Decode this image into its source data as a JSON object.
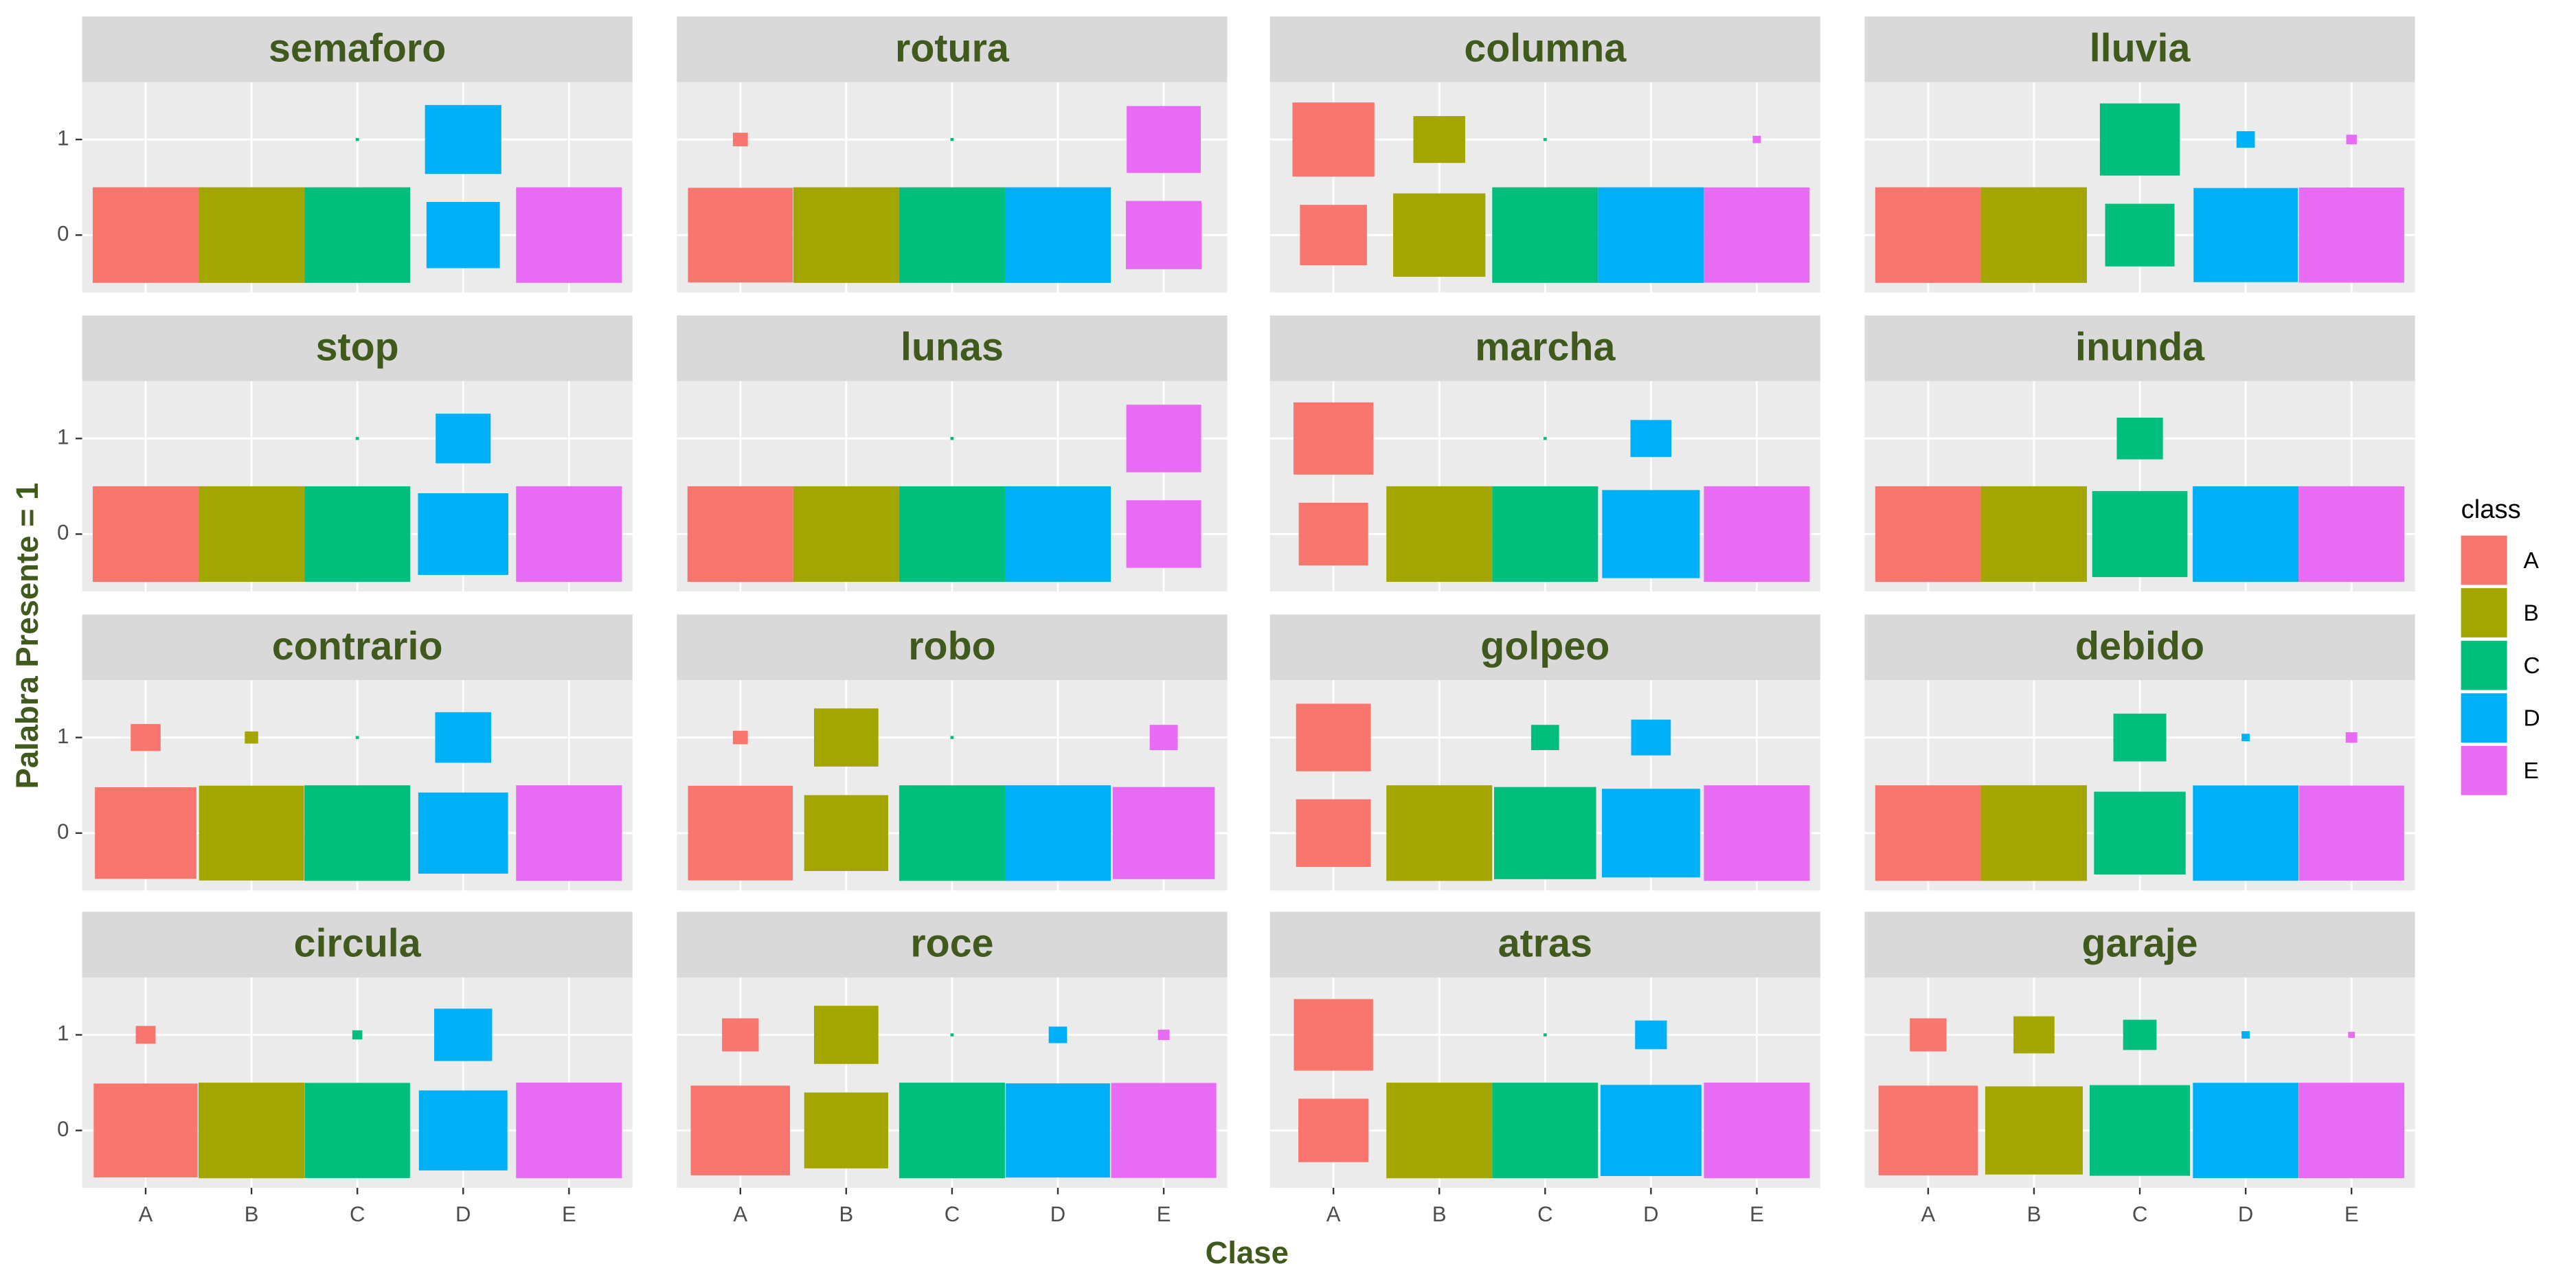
{
  "chart_data": {
    "type": "count",
    "x_label": "Clase",
    "y_label": "Palabra Presente = 1",
    "categories": [
      "A",
      "B",
      "C",
      "D",
      "E"
    ],
    "xlim": [
      0.4,
      5.6
    ],
    "ylim": [
      -0.6,
      1.6
    ],
    "yticks": [
      0,
      1
    ],
    "grid": true,
    "legend_title": "class",
    "colors": [
      "#F8766D",
      "#A3A500",
      "#00BF7D",
      "#00B0F6",
      "#E76BF3"
    ],
    "facets": [
      {
        "title": "semaforo",
        "present": [
          0,
          0,
          0.001,
          0.52,
          0
        ],
        "absent": [
          1,
          1,
          0.999,
          0.48,
          1
        ]
      },
      {
        "title": "rotura",
        "present": [
          0.02,
          0,
          0.001,
          0,
          0.49
        ],
        "absent": [
          0.98,
          1,
          0.999,
          1,
          0.51
        ]
      },
      {
        "title": "columna",
        "present": [
          0.6,
          0.24,
          0.001,
          0,
          0.006
        ],
        "absent": [
          0.4,
          0.76,
          0.999,
          1,
          0.994
        ]
      },
      {
        "title": "lluvia",
        "present": [
          0,
          0,
          0.57,
          0.03,
          0.01
        ],
        "absent": [
          1,
          1,
          0.43,
          0.97,
          0.99
        ]
      },
      {
        "title": "stop",
        "present": [
          0,
          0,
          0.001,
          0.27,
          0
        ],
        "absent": [
          1,
          1,
          0.999,
          0.73,
          1
        ]
      },
      {
        "title": "lunas",
        "present": [
          0,
          0,
          0.001,
          0,
          0.5
        ],
        "absent": [
          1,
          1,
          0.999,
          1,
          0.5
        ]
      },
      {
        "title": "marcha",
        "present": [
          0.57,
          0,
          0.001,
          0.15,
          0
        ],
        "absent": [
          0.43,
          1,
          0.999,
          0.85,
          1
        ]
      },
      {
        "title": "inunda",
        "present": [
          0,
          0,
          0.19,
          0,
          0
        ],
        "absent": [
          1,
          1,
          0.81,
          1,
          1
        ]
      },
      {
        "title": "contrario",
        "present": [
          0.08,
          0.016,
          0.001,
          0.28,
          0
        ],
        "absent": [
          0.92,
          0.984,
          0.999,
          0.72,
          1
        ]
      },
      {
        "title": "robo",
        "present": [
          0.02,
          0.37,
          0.001,
          0,
          0.07
        ],
        "absent": [
          0.98,
          0.63,
          0.999,
          1,
          0.93
        ]
      },
      {
        "title": "golpeo",
        "present": [
          0.5,
          0,
          0.07,
          0.14,
          0
        ],
        "absent": [
          0.5,
          1,
          0.93,
          0.86,
          1
        ]
      },
      {
        "title": "debido",
        "present": [
          0,
          0,
          0.25,
          0.006,
          0.012
        ],
        "absent": [
          1,
          1,
          0.75,
          0.994,
          0.988
        ]
      },
      {
        "title": "circula",
        "present": [
          0.035,
          0,
          0.009,
          0.3,
          0
        ],
        "absent": [
          0.965,
          1,
          0.991,
          0.7,
          1
        ]
      },
      {
        "title": "roce",
        "present": [
          0.12,
          0.37,
          0.001,
          0.03,
          0.012
        ],
        "absent": [
          0.88,
          0.63,
          0.999,
          0.97,
          0.988
        ]
      },
      {
        "title": "atras",
        "present": [
          0.56,
          0,
          0.001,
          0.09,
          0
        ],
        "absent": [
          0.44,
          1,
          0.999,
          0.91,
          1
        ]
      },
      {
        "title": "garaje",
        "present": [
          0.12,
          0.15,
          0.1,
          0.006,
          0.004
        ],
        "absent": [
          0.88,
          0.85,
          0.9,
          0.994,
          0.996
        ]
      }
    ]
  }
}
